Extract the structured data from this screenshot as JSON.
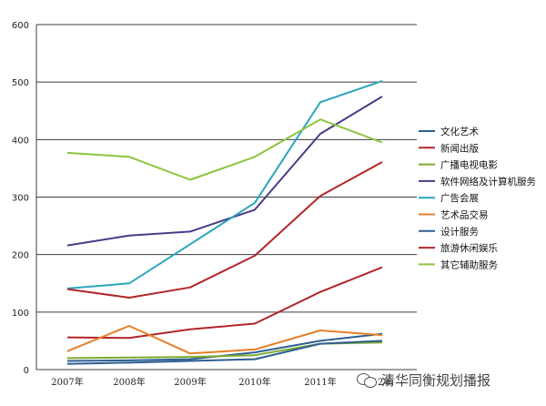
{
  "chart_data": {
    "type": "line",
    "x": [
      "2007年",
      "2008年",
      "2009年",
      "2010年",
      "2011年",
      "2012年"
    ],
    "x_tick_labels": [
      "2007年",
      "2008年",
      "2009年",
      "2010年",
      "2011年",
      "12年"
    ],
    "ylim": [
      0,
      600
    ],
    "yticks": [
      "0",
      "100",
      "200",
      "300",
      "400",
      "500",
      "600"
    ],
    "grid": true,
    "legend_position": "right",
    "series": [
      {
        "name": "文化艺术",
        "color": "#2e5f93",
        "values": [
          15,
          16,
          18,
          30,
          50,
          62
        ]
      },
      {
        "name": "新闻出版",
        "color": "#b3252a",
        "values": [
          56,
          55,
          70,
          80,
          135,
          178
        ]
      },
      {
        "name": "广播电视电影",
        "color": "#7dab2e",
        "values": [
          20,
          21,
          22,
          25,
          45,
          47
        ]
      },
      {
        "name": "软件网络及计算机服务",
        "color": "#4a3a86",
        "values": [
          216,
          233,
          240,
          278,
          410,
          475
        ]
      },
      {
        "name": "广告会展",
        "color": "#2ba5bd",
        "values": [
          141,
          150,
          218,
          290,
          465,
          502
        ]
      },
      {
        "name": "艺术品交易",
        "color": "#e57f2a",
        "values": [
          32,
          76,
          28,
          35,
          68,
          60
        ]
      },
      {
        "name": "设计服务",
        "color": "#2e5f93",
        "values": [
          10,
          12,
          15,
          18,
          45,
          50
        ]
      },
      {
        "name": "旅游休闲娱乐",
        "color": "#b3252a",
        "values": [
          140,
          125,
          143,
          198,
          302,
          361
        ]
      },
      {
        "name": "其它辅助服务",
        "color": "#8cc43f",
        "values": [
          377,
          370,
          330,
          370,
          435,
          395
        ]
      }
    ]
  },
  "watermark": {
    "text": "清华同衡规划播报",
    "icon": "wechat-icon"
  }
}
